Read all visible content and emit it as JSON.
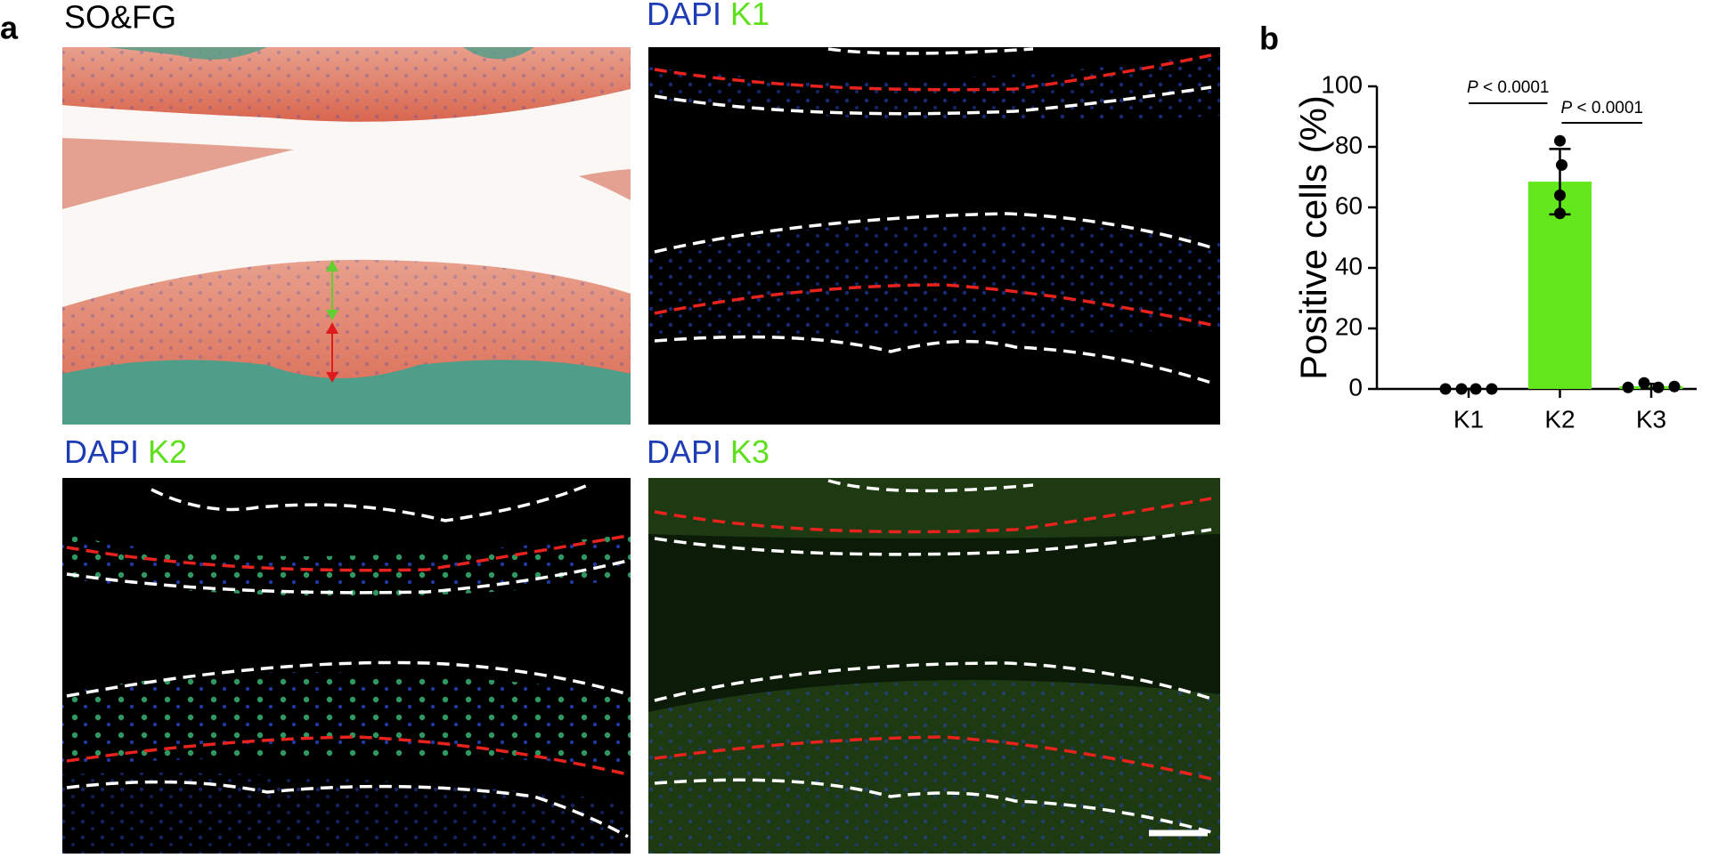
{
  "figure": {
    "panel_a_label": "a",
    "panel_b_label": "b",
    "panels": [
      {
        "title": "SO&FG"
      },
      {
        "stain": "DAPI",
        "marker": "K1"
      },
      {
        "stain": "DAPI",
        "marker": "K2"
      },
      {
        "stain": "DAPI",
        "marker": "K3"
      }
    ]
  },
  "chart_data": {
    "type": "bar",
    "ylabel": "Positive cells (%)",
    "categories": [
      "K1",
      "K2",
      "K3"
    ],
    "values": [
      0,
      68.5,
      0.9
    ],
    "errors": [
      0,
      10.8,
      0.8
    ],
    "points": [
      [
        0,
        0,
        0,
        0
      ],
      [
        82,
        74,
        64,
        58
      ],
      [
        0.5,
        2,
        0.5,
        0.8
      ]
    ],
    "color": "#62e81c",
    "ylim": [
      0,
      100
    ],
    "yticks": [
      0,
      20,
      40,
      60,
      80,
      100
    ],
    "annotations": [
      {
        "italic": "P",
        "text": "< 0.0001"
      },
      {
        "italic": "P",
        "text": "< 0.0001"
      }
    ]
  }
}
